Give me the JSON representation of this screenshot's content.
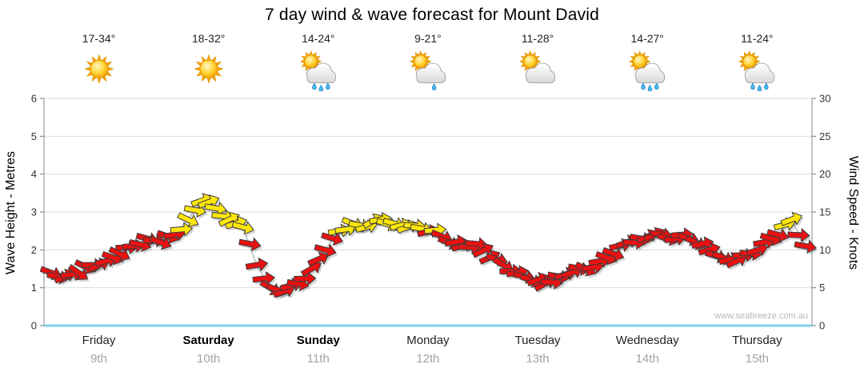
{
  "page": {
    "watermark": "www.seabreeze.com.au"
  },
  "forecast": {
    "days": [
      {
        "name": "Friday",
        "date": "9th",
        "temp": "17-34°",
        "icon": "sunny",
        "emphasis": false
      },
      {
        "name": "Saturday",
        "date": "10th",
        "temp": "18-32°",
        "icon": "sunny",
        "emphasis": true
      },
      {
        "name": "Sunday",
        "date": "11th",
        "temp": "14-24°",
        "icon": "showers",
        "emphasis": true
      },
      {
        "name": "Monday",
        "date": "12th",
        "temp": "9-21°",
        "icon": "light-shower",
        "emphasis": false
      },
      {
        "name": "Tuesday",
        "date": "13th",
        "temp": "11-28°",
        "icon": "partly-cloudy",
        "emphasis": false
      },
      {
        "name": "Wednesday",
        "date": "14th",
        "temp": "14-27°",
        "icon": "showers",
        "emphasis": false
      },
      {
        "name": "Thursday",
        "date": "15th",
        "temp": "11-24°",
        "icon": "showers",
        "emphasis": false
      }
    ]
  },
  "chart_data": {
    "type": "wind-arrows+wave-line",
    "title": "7 day wind & wave forecast for Mount David",
    "x_axis": {
      "categories": [
        "Friday 9th",
        "Saturday 10th",
        "Sunday 11th",
        "Monday 12th",
        "Tuesday 13th",
        "Wednesday 14th",
        "Thursday 15th"
      ],
      "hours_total": 168
    },
    "y_left": {
      "label": "Wave Height - Metres",
      "min": 0,
      "max": 6,
      "ticks": [
        0,
        1,
        2,
        3,
        4,
        5,
        6
      ]
    },
    "y_right": {
      "label": "Wind Speed - Knots",
      "min": 0,
      "max": 30,
      "ticks": [
        0,
        5,
        10,
        15,
        20,
        25,
        30
      ]
    },
    "grid": true,
    "legend": "none",
    "colors": {
      "wind_light": "#e81212",
      "wind_moderate": "#ffe60a",
      "arrow_outline": "#3c3c3c",
      "wave_line": "#c9c9c9",
      "axis_bottom": "#7fd0ee",
      "grid_line": "#dcdcdc",
      "axis_line": "#8a8a8a"
    },
    "moderate_threshold_knots": 12.5,
    "dir_unit": "degrees clockwise from due east (arrow pointing direction)",
    "point_fields": [
      "day_index",
      "hour",
      "wind_knots",
      "dir_deg",
      "wave_m"
    ],
    "points": [
      [
        0,
        0,
        7,
        20,
        1.4
      ],
      [
        0,
        3,
        6.5,
        -25,
        1.3
      ],
      [
        0,
        6,
        7,
        35,
        1.4
      ],
      [
        0,
        9,
        8,
        0,
        1.6
      ],
      [
        0,
        12,
        8.5,
        -15,
        1.7
      ],
      [
        0,
        15,
        9.5,
        25,
        1.9
      ],
      [
        0,
        18,
        10.5,
        -5,
        2.1
      ],
      [
        0,
        21,
        11.5,
        15,
        2.3
      ],
      [
        1,
        0,
        11,
        20,
        2.2
      ],
      [
        1,
        3,
        12,
        -10,
        2.4
      ],
      [
        1,
        6,
        14,
        25,
        2.8
      ],
      [
        1,
        9,
        16.5,
        -20,
        3.3
      ],
      [
        1,
        12,
        15.5,
        10,
        3.1
      ],
      [
        1,
        15,
        14,
        -25,
        2.8
      ],
      [
        1,
        18,
        13,
        15,
        2.6
      ],
      [
        1,
        21,
        8,
        -10,
        1.6
      ],
      [
        2,
        0,
        5,
        30,
        1.0
      ],
      [
        2,
        3,
        4.5,
        -20,
        0.9
      ],
      [
        2,
        6,
        5.5,
        10,
        1.1
      ],
      [
        2,
        9,
        7.5,
        -30,
        1.5
      ],
      [
        2,
        12,
        10,
        15,
        2.0
      ],
      [
        2,
        15,
        12.5,
        -10,
        2.5
      ],
      [
        2,
        18,
        13.5,
        20,
        2.7
      ],
      [
        2,
        21,
        13,
        -15,
        2.6
      ],
      [
        3,
        0,
        14,
        -10,
        2.8
      ],
      [
        3,
        3,
        13.5,
        15,
        2.7
      ],
      [
        3,
        6,
        13,
        -20,
        2.6
      ],
      [
        3,
        9,
        12.8,
        10,
        2.6
      ],
      [
        3,
        12,
        12.6,
        -5,
        2.5
      ],
      [
        3,
        15,
        11,
        20,
        2.2
      ],
      [
        3,
        18,
        10.5,
        -15,
        2.1
      ],
      [
        3,
        21,
        10.8,
        5,
        2.2
      ],
      [
        4,
        0,
        9,
        -25,
        1.8
      ],
      [
        4,
        3,
        8,
        30,
        1.6
      ],
      [
        4,
        6,
        7,
        -10,
        1.4
      ],
      [
        4,
        9,
        6,
        20,
        1.2
      ],
      [
        4,
        12,
        5.5,
        -30,
        1.1
      ],
      [
        4,
        15,
        6.5,
        10,
        1.3
      ],
      [
        4,
        18,
        7,
        -20,
        1.4
      ],
      [
        4,
        21,
        7.5,
        25,
        1.5
      ],
      [
        5,
        0,
        8.5,
        -10,
        1.7
      ],
      [
        5,
        3,
        9.5,
        20,
        1.9
      ],
      [
        5,
        6,
        11,
        -20,
        2.2
      ],
      [
        5,
        9,
        11.5,
        10,
        2.3
      ],
      [
        5,
        12,
        12,
        -25,
        2.4
      ],
      [
        5,
        15,
        11.5,
        15,
        2.3
      ],
      [
        5,
        18,
        12,
        -5,
        2.4
      ],
      [
        5,
        21,
        11,
        25,
        2.2
      ],
      [
        6,
        0,
        10,
        -15,
        2.0
      ],
      [
        6,
        3,
        9,
        20,
        1.8
      ],
      [
        6,
        6,
        8.5,
        -25,
        1.7
      ],
      [
        6,
        9,
        9.5,
        5,
        1.9
      ],
      [
        6,
        12,
        11,
        -10,
        2.2
      ],
      [
        6,
        15,
        12,
        15,
        2.4
      ],
      [
        6,
        18,
        14,
        -20,
        2.8
      ],
      [
        6,
        21,
        10.5,
        10,
        2.1
      ]
    ]
  }
}
